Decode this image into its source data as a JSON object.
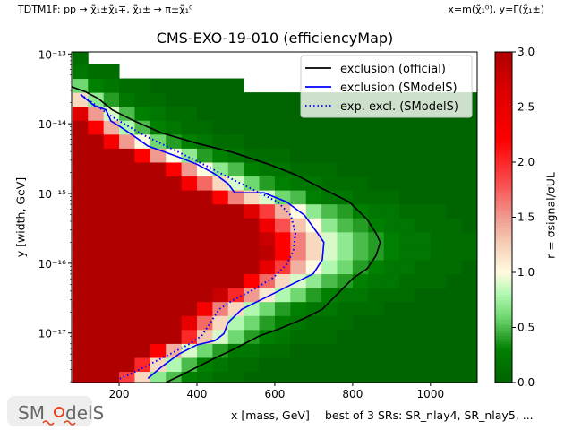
{
  "header": {
    "left": "TDTM1F: pp → χ̃₁±χ̃₁∓, χ̃₁± → π±χ̃₁⁰",
    "right": "x=m(χ̃₁⁰), y=Γ(χ̃₁±)"
  },
  "footer": {
    "best_srs": "best of 3 SRs: SR_nlay4, SR_nlay5, ...",
    "logo_text": "SModelS"
  },
  "chart_data": {
    "type": "heatmap",
    "title": "CMS-EXO-19-010 (efficiencyMap)",
    "xlabel": "x [mass, GeV]",
    "ylabel": "y [width, GeV]",
    "xscale": "linear",
    "yscale": "log",
    "xlim": [
      78,
      1120
    ],
    "ylim": [
      1.95e-18,
      1.07e-13
    ],
    "xticks": [
      200,
      400,
      600,
      800,
      1000
    ],
    "xtick_labels": [
      "200",
      "400",
      "600",
      "800",
      "1000"
    ],
    "yticks": [
      -17,
      -16,
      -15,
      -14,
      -13
    ],
    "ytick_labels": [
      "10⁻¹⁷",
      "10⁻¹⁶",
      "10⁻¹⁵",
      "10⁻¹⁴",
      "10⁻¹³"
    ],
    "colorbar": {
      "label": "r = σsignal/σUL",
      "range": [
        0,
        3
      ],
      "ticks": [
        "0.0",
        "0.5",
        "1.0",
        "1.5",
        "2.0",
        "2.5",
        "3.0"
      ],
      "colormap": [
        [
          0,
          "#006400"
        ],
        [
          0.3,
          "#008000"
        ],
        [
          0.6,
          "#70d870"
        ],
        [
          0.8,
          "#b0f8b0"
        ],
        [
          1.0,
          "#fffbe0"
        ],
        [
          1.25,
          "#f6d0b8"
        ],
        [
          1.5,
          "#f09a90"
        ],
        [
          1.8,
          "#f85050"
        ],
        [
          2.2,
          "#ff0000"
        ],
        [
          2.6,
          "#e00000"
        ],
        [
          3.0,
          "#b00000"
        ]
      ]
    },
    "grid": false,
    "legend": {
      "placement": "top-right",
      "entries": [
        {
          "label": "exclusion (official)",
          "color": "#000000",
          "style": "solid"
        },
        {
          "label": "exclusion (SModelS)",
          "color": "#0000ff",
          "style": "solid"
        },
        {
          "label": "exp. excl. (SModelS)",
          "color": "#0000ff",
          "style": "dotted"
        }
      ]
    },
    "x_centers": [
      100,
      140,
      180,
      220,
      260,
      300,
      340,
      380,
      420,
      460,
      500,
      540,
      580,
      620,
      660,
      700,
      740,
      780,
      820,
      860,
      900,
      940,
      980,
      1020,
      1060,
      1100
    ],
    "log10_y_centers": [
      -17.65,
      -17.45,
      -17.25,
      -17.05,
      -16.85,
      -16.65,
      -16.45,
      -16.25,
      -16.05,
      -15.85,
      -15.65,
      -15.45,
      -15.25,
      -15.05,
      -14.85,
      -14.65,
      -14.45,
      -14.25,
      -14.05,
      -13.85,
      -13.65,
      -13.45,
      -13.25,
      -13.05
    ],
    "r_values": [
      [
        3,
        3,
        3,
        1.9,
        1.2,
        0.7,
        0.5,
        0.3,
        0.2,
        0.1,
        0.1,
        0,
        0,
        0,
        0,
        0,
        0,
        0,
        0,
        0,
        0,
        0,
        0,
        0,
        0,
        0
      ],
      [
        3,
        3,
        3,
        3,
        2.0,
        1.2,
        0.8,
        0.5,
        0.3,
        0.2,
        0.1,
        0.1,
        0,
        0,
        0,
        0,
        0,
        0,
        0,
        0,
        0,
        0,
        0,
        0,
        0,
        0
      ],
      [
        3,
        3,
        3,
        3,
        3,
        2.2,
        1.4,
        0.9,
        0.6,
        0.4,
        0.2,
        0.2,
        0.1,
        0.1,
        0,
        0,
        0,
        0,
        0,
        0,
        0,
        0,
        0,
        0,
        0,
        0
      ],
      [
        3,
        3,
        3,
        3,
        3,
        3,
        3,
        2.0,
        1.3,
        0.9,
        0.6,
        0.4,
        0.3,
        0.2,
        0.1,
        0.1,
        0.1,
        0,
        0,
        0,
        0,
        0,
        0,
        0,
        0,
        0
      ],
      [
        3,
        3,
        3,
        3,
        3,
        3,
        3,
        2.5,
        1.7,
        1.2,
        0.8,
        0.6,
        0.4,
        0.3,
        0.2,
        0.1,
        0.1,
        0.1,
        0,
        0,
        0,
        0,
        0,
        0,
        0,
        0
      ],
      [
        3,
        3,
        3,
        3,
        3,
        3,
        3,
        3,
        2.3,
        1.6,
        1.2,
        0.8,
        0.6,
        0.4,
        0.3,
        0.2,
        0.2,
        0.1,
        0.1,
        0.1,
        0,
        0,
        0,
        0,
        0,
        0
      ],
      [
        3,
        3,
        3,
        3,
        3,
        3,
        3,
        3,
        3,
        2.8,
        2.0,
        1.5,
        1.1,
        0.8,
        0.6,
        0.4,
        0.3,
        0.2,
        0.2,
        0.1,
        0.1,
        0.1,
        0,
        0,
        0,
        0
      ],
      [
        3,
        3,
        3,
        3,
        3,
        3,
        3,
        3,
        3,
        3,
        3,
        2.2,
        1.7,
        1.2,
        0.9,
        0.7,
        0.5,
        0.4,
        0.3,
        0.2,
        0.2,
        0.1,
        0.1,
        0.1,
        0,
        0
      ],
      [
        3,
        3,
        3,
        3,
        3,
        3,
        3,
        3,
        3,
        3,
        3,
        3,
        2.5,
        1.9,
        1.4,
        1.0,
        0.8,
        0.6,
        0.4,
        0.3,
        0.2,
        0.2,
        0.1,
        0.1,
        0.1,
        0
      ],
      [
        3,
        3,
        3,
        3,
        3,
        3,
        3,
        3,
        3,
        3,
        3,
        3,
        2.9,
        2.2,
        1.6,
        1.2,
        0.9,
        0.7,
        0.5,
        0.4,
        0.3,
        0.2,
        0.2,
        0.1,
        0.1,
        0.1
      ],
      [
        3,
        3,
        3,
        3,
        3,
        3,
        3,
        3,
        3,
        3,
        3,
        3,
        2.8,
        2.2,
        1.6,
        1.2,
        0.9,
        0.7,
        0.5,
        0.4,
        0.3,
        0.2,
        0.2,
        0.1,
        0.1,
        0.1
      ],
      [
        3,
        3,
        3,
        3,
        3,
        3,
        3,
        3,
        3,
        3,
        3,
        3,
        2.4,
        1.8,
        1.3,
        1.0,
        0.7,
        0.5,
        0.4,
        0.3,
        0.2,
        0.2,
        0.1,
        0.1,
        0.1,
        0
      ],
      [
        3,
        3,
        3,
        3,
        3,
        3,
        3,
        3,
        3,
        3,
        3,
        2.6,
        1.9,
        1.4,
        1.0,
        0.7,
        0.5,
        0.4,
        0.3,
        0.2,
        0.2,
        0.1,
        0.1,
        0.1,
        0,
        0
      ],
      [
        3,
        3,
        3,
        3,
        3,
        3,
        3,
        3,
        3,
        2.2,
        1.6,
        1.2,
        0.9,
        0.6,
        0.5,
        0.3,
        0.2,
        0.2,
        0.1,
        0.1,
        0.1,
        0,
        0,
        0,
        0,
        0
      ],
      [
        3,
        3,
        3,
        3,
        3,
        3,
        3,
        2.3,
        1.7,
        1.2,
        0.9,
        0.6,
        0.4,
        0.3,
        0.2,
        0.2,
        0.1,
        0.1,
        0.1,
        0,
        0,
        0,
        0,
        0,
        0,
        0
      ],
      [
        3,
        3,
        3,
        3,
        3,
        3,
        2.2,
        1.5,
        1.0,
        0.7,
        0.5,
        0.3,
        0.2,
        0.2,
        0.1,
        0.1,
        0.1,
        0,
        0,
        0,
        0,
        0,
        0,
        0,
        0,
        0
      ],
      [
        3,
        3,
        3,
        3,
        2.2,
        1.5,
        1.0,
        0.7,
        0.4,
        0.3,
        0.2,
        0.1,
        0.1,
        0.1,
        0,
        0,
        0,
        0,
        0,
        0,
        0,
        0,
        0,
        0,
        0,
        0
      ],
      [
        3,
        3,
        2.3,
        1.5,
        1.0,
        0.6,
        0.4,
        0.3,
        0.2,
        0.1,
        0.1,
        0,
        0,
        0,
        0,
        0,
        0,
        0,
        0,
        0,
        0,
        0,
        0,
        0,
        0,
        0
      ],
      [
        3,
        2.2,
        1.4,
        0.8,
        0.5,
        0.3,
        0.2,
        0.1,
        0.1,
        0,
        0,
        0,
        0,
        0,
        0,
        0,
        0,
        0,
        0,
        0,
        0,
        0,
        0,
        0,
        0,
        0
      ],
      [
        2.6,
        1.5,
        0.9,
        0.5,
        0.3,
        0.2,
        0.1,
        0.1,
        0,
        0,
        0,
        0,
        0,
        0,
        0,
        0,
        0,
        0,
        0,
        0,
        0,
        0,
        0,
        0,
        0,
        0
      ],
      [
        1.2,
        0.7,
        0.4,
        0.2,
        0.1,
        0.1,
        0,
        0,
        0,
        0,
        0,
        0,
        0,
        0,
        0,
        0,
        0,
        0,
        0,
        0,
        0,
        0,
        0,
        0,
        0,
        0
      ],
      [
        0.6,
        0.3,
        0.2,
        0.1,
        0.1,
        0,
        0,
        0,
        0,
        0,
        0,
        null,
        null,
        null,
        null,
        null,
        null,
        null,
        null,
        null,
        null,
        null,
        null,
        null,
        null,
        null
      ],
      [
        0.2,
        0.1,
        0.1,
        null,
        null,
        null,
        null,
        null,
        null,
        null,
        null,
        null,
        null,
        null,
        null,
        null,
        null,
        null,
        null,
        null,
        null,
        null,
        null,
        null,
        null,
        null
      ],
      [
        0.1,
        null,
        null,
        null,
        null,
        null,
        null,
        null,
        null,
        null,
        null,
        null,
        null,
        null,
        null,
        null,
        null,
        null,
        null,
        null,
        null,
        null,
        null,
        null,
        null,
        null
      ]
    ],
    "contours": [
      {
        "name": "exclusion (official)",
        "color": "#000000",
        "style": "solid",
        "x": [
          78,
          113,
          147,
          182,
          239,
          308,
          400,
          492,
          584,
          653,
          722,
          791,
          837,
          860,
          871,
          860,
          837,
          802,
          768,
          722,
          676,
          607,
          561,
          492,
          446,
          400,
          354,
          320
        ],
        "log10_y": [
          -13.47,
          -13.54,
          -13.64,
          -13.8,
          -13.96,
          -14.13,
          -14.28,
          -14.41,
          -14.58,
          -14.73,
          -14.93,
          -15.12,
          -15.37,
          -15.57,
          -15.7,
          -15.89,
          -16.08,
          -16.21,
          -16.4,
          -16.66,
          -16.79,
          -16.95,
          -17.04,
          -17.24,
          -17.36,
          -17.49,
          -17.62,
          -17.71
        ]
      },
      {
        "name": "exclusion (SModelS)",
        "color": "#0000ff",
        "style": "solid",
        "x": [
          101,
          136,
          166,
          179,
          205,
          239,
          274,
          320,
          354,
          400,
          446,
          480,
          497,
          572,
          630,
          676,
          710,
          726,
          722,
          699,
          630,
          584,
          515,
          480,
          469,
          446,
          400,
          354,
          308,
          274
        ],
        "log10_y": [
          -13.58,
          -13.74,
          -13.8,
          -13.96,
          -14.05,
          -14.18,
          -14.32,
          -14.41,
          -14.48,
          -14.58,
          -14.72,
          -14.86,
          -14.99,
          -14.99,
          -15.12,
          -15.31,
          -15.57,
          -15.7,
          -15.95,
          -16.15,
          -16.34,
          -16.47,
          -16.66,
          -16.85,
          -17.01,
          -17.11,
          -17.17,
          -17.3,
          -17.49,
          -17.65
        ]
      },
      {
        "name": "exp. excl. (SModelS)",
        "color": "#0000ff",
        "style": "dotted",
        "x": [
          101,
          182,
          262,
          354,
          423,
          492,
          561,
          607,
          641,
          653,
          648,
          630,
          595,
          538,
          492,
          457,
          435,
          412,
          377,
          331,
          285,
          239,
          200
        ],
        "log10_y": [
          -13.58,
          -13.9,
          -14.16,
          -14.41,
          -14.6,
          -14.8,
          -14.99,
          -15.12,
          -15.31,
          -15.57,
          -15.82,
          -16.02,
          -16.21,
          -16.4,
          -16.53,
          -16.66,
          -16.85,
          -17.04,
          -17.17,
          -17.3,
          -17.43,
          -17.56,
          -17.66
        ]
      }
    ]
  }
}
